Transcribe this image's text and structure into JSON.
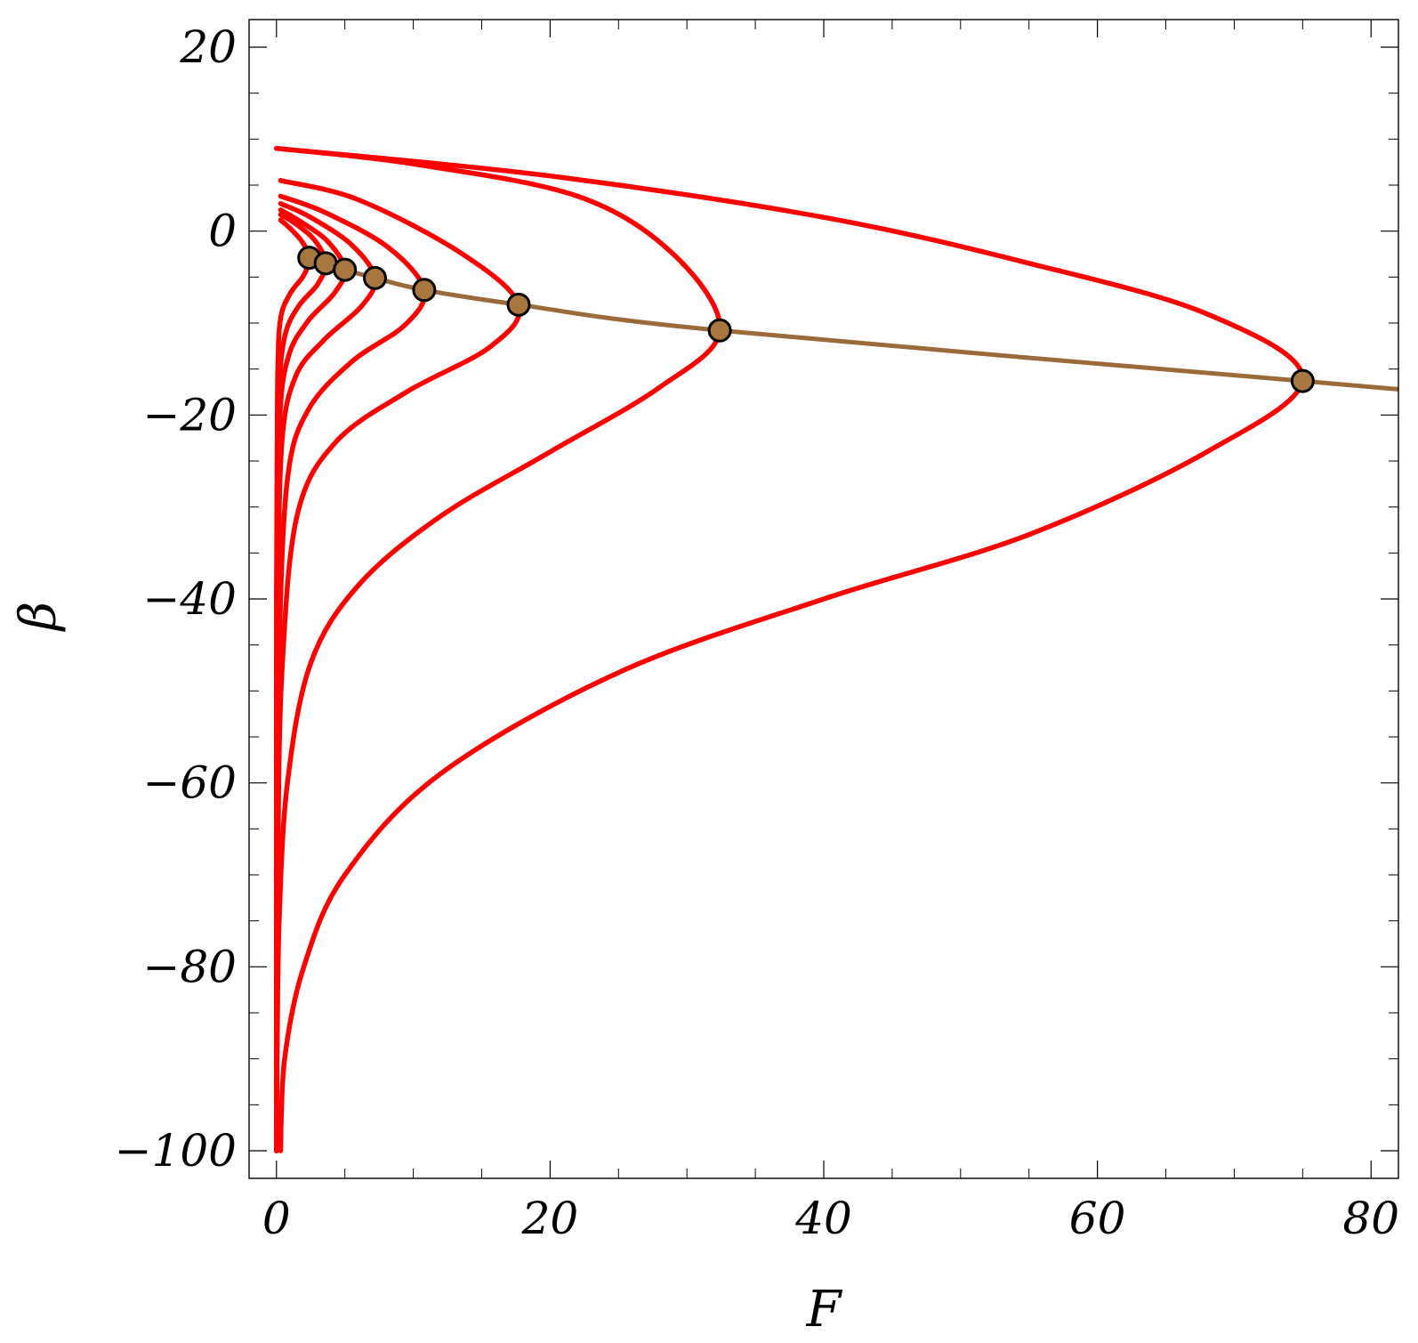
{
  "chart_data": {
    "type": "line",
    "title": "",
    "xlabel": "F",
    "ylabel": "β",
    "xlim": [
      -2,
      82
    ],
    "ylim": [
      -103,
      23
    ],
    "x_ticks": [
      0,
      20,
      40,
      60,
      80
    ],
    "y_ticks": [
      20,
      0,
      -20,
      -40,
      -60,
      -80,
      -100
    ],
    "x_tick_labels": [
      "0",
      "20",
      "40",
      "60",
      "80"
    ],
    "y_tick_labels": [
      "20",
      "0",
      "−20",
      "−40",
      "−60",
      "−80",
      "−100"
    ],
    "grid": false,
    "legend": "none",
    "colors": {
      "curves": "#ff0000",
      "locus_line": "#9a6a3a",
      "marker_fill": "#a8773f",
      "marker_edge": "#000000",
      "frame": "#000000"
    },
    "series": [
      {
        "type": "line",
        "color": "#ff0000",
        "points": [
          [
            0.3,
            1.2
          ],
          [
            1.0,
            0.3
          ],
          [
            1.9,
            -1.2
          ],
          [
            2.4,
            -2.9
          ],
          [
            2.0,
            -4.8
          ],
          [
            1.0,
            -6.8
          ],
          [
            0.3,
            -9.5
          ],
          [
            0.1,
            -15
          ],
          [
            0.05,
            -25
          ],
          [
            0.0,
            -40
          ],
          [
            0.0,
            -60
          ],
          [
            0.0,
            -80
          ],
          [
            0.0,
            -100
          ]
        ]
      },
      {
        "type": "line",
        "color": "#ff0000",
        "points": [
          [
            0.3,
            1.8
          ],
          [
            1.4,
            0.8
          ],
          [
            2.8,
            -1.0
          ],
          [
            3.6,
            -3.5
          ],
          [
            3.0,
            -5.8
          ],
          [
            1.6,
            -8.2
          ],
          [
            0.6,
            -11.5
          ],
          [
            0.15,
            -18
          ],
          [
            0.05,
            -30
          ],
          [
            0.0,
            -50
          ],
          [
            0.0,
            -75
          ],
          [
            0.0,
            -100
          ]
        ]
      },
      {
        "type": "line",
        "color": "#ff0000",
        "points": [
          [
            0.3,
            2.3
          ],
          [
            1.8,
            1.0
          ],
          [
            3.8,
            -1.2
          ],
          [
            5.0,
            -4.2
          ],
          [
            4.2,
            -6.8
          ],
          [
            2.3,
            -9.8
          ],
          [
            0.9,
            -13.5
          ],
          [
            0.25,
            -20
          ],
          [
            0.05,
            -35
          ],
          [
            0.0,
            -55
          ],
          [
            0.0,
            -80
          ],
          [
            0.0,
            -100
          ]
        ]
      },
      {
        "type": "line",
        "color": "#ff0000",
        "points": [
          [
            0.3,
            3.0
          ],
          [
            2.5,
            1.5
          ],
          [
            5.5,
            -1.5
          ],
          [
            7.2,
            -5.1
          ],
          [
            6.2,
            -8.2
          ],
          [
            3.5,
            -11.8
          ],
          [
            1.4,
            -15.8
          ],
          [
            0.4,
            -23
          ],
          [
            0.1,
            -40
          ],
          [
            0.0,
            -60
          ],
          [
            0.0,
            -80
          ],
          [
            0.0,
            -100
          ]
        ]
      },
      {
        "type": "line",
        "color": "#ff0000",
        "points": [
          [
            0.3,
            3.8
          ],
          [
            3.6,
            2.0
          ],
          [
            8.2,
            -1.8
          ],
          [
            10.8,
            -6.4
          ],
          [
            9.4,
            -10.2
          ],
          [
            5.5,
            -14.2
          ],
          [
            2.3,
            -19.5
          ],
          [
            0.8,
            -27
          ],
          [
            0.2,
            -45
          ],
          [
            0.05,
            -65
          ],
          [
            0.0,
            -85
          ],
          [
            0.0,
            -100
          ]
        ]
      },
      {
        "type": "line",
        "color": "#ff0000",
        "points": [
          [
            0.3,
            5.5
          ],
          [
            6.0,
            3.4
          ],
          [
            13.5,
            -2.4
          ],
          [
            17.7,
            -8.0
          ],
          [
            15.6,
            -12.6
          ],
          [
            9.5,
            -17.5
          ],
          [
            4.3,
            -23.0
          ],
          [
            1.5,
            -31
          ],
          [
            0.4,
            -48
          ],
          [
            0.1,
            -68
          ],
          [
            0.0,
            -85
          ],
          [
            0.0,
            -100
          ]
        ]
      },
      {
        "type": "line",
        "color": "#ff0000",
        "points": [
          [
            0.0,
            9.0
          ],
          [
            10.0,
            7.3
          ],
          [
            22.0,
            3.8
          ],
          [
            29.0,
            -2.5
          ],
          [
            32.4,
            -10.8
          ],
          [
            28.0,
            -17.0
          ],
          [
            20.0,
            -24.0
          ],
          [
            12.0,
            -31.0
          ],
          [
            6.0,
            -38.5
          ],
          [
            2.5,
            -47
          ],
          [
            0.8,
            -60
          ],
          [
            0.2,
            -75
          ],
          [
            0.05,
            -90
          ],
          [
            0.0,
            -100
          ]
        ]
      },
      {
        "type": "line",
        "color": "#ff0000",
        "points": [
          [
            0.0,
            9.0
          ],
          [
            20.0,
            6.0
          ],
          [
            40.0,
            1.5
          ],
          [
            55.0,
            -3.5
          ],
          [
            68.0,
            -9.0
          ],
          [
            75.0,
            -16.0
          ],
          [
            68.0,
            -24.0
          ],
          [
            55.0,
            -33.0
          ],
          [
            40.0,
            -40.0
          ],
          [
            25.0,
            -48.0
          ],
          [
            12.0,
            -59.0
          ],
          [
            5.0,
            -70.0
          ],
          [
            2.0,
            -80.0
          ],
          [
            0.6,
            -90.0
          ],
          [
            0.3,
            -100.0
          ]
        ]
      },
      {
        "type": "line",
        "color": "#9a6a3a",
        "points": [
          [
            2.4,
            -2.9
          ],
          [
            3.6,
            -3.5
          ],
          [
            5.0,
            -4.2
          ],
          [
            7.2,
            -5.1
          ],
          [
            10.8,
            -6.4
          ],
          [
            17.7,
            -8.0
          ],
          [
            32.4,
            -10.8
          ],
          [
            75.0,
            -16.3
          ],
          [
            82.0,
            -17.2
          ]
        ]
      },
      {
        "type": "scatter",
        "color": "#a8773f",
        "points": [
          [
            2.4,
            -2.9
          ],
          [
            3.6,
            -3.5
          ],
          [
            5.0,
            -4.2
          ],
          [
            7.2,
            -5.1
          ],
          [
            10.8,
            -6.4
          ],
          [
            17.7,
            -8.0
          ],
          [
            32.4,
            -10.8
          ],
          [
            75.0,
            -16.3
          ]
        ]
      }
    ]
  }
}
